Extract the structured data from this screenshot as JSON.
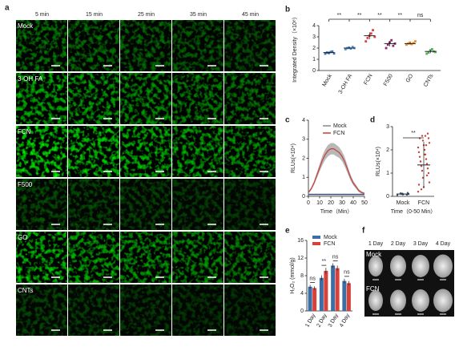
{
  "figure": {
    "panel_a": {
      "label": "a",
      "columns": [
        "5 min",
        "15 min",
        "25 min",
        "35 min",
        "45 min"
      ],
      "rows": [
        "Mock",
        "3-OH FA",
        "FCN",
        "F500",
        "GO",
        "CNTs"
      ]
    },
    "panel_f": {
      "label": "f",
      "columns": [
        "1 Day",
        "2 Day",
        "3 Day",
        "4 Day"
      ],
      "rows": [
        "Mock",
        "FCN"
      ]
    }
  },
  "chart_data": [
    {
      "type": "dot",
      "panel": "b",
      "ylabel": "Integrated Density（×10⁸）",
      "categories": [
        "Mock",
        "3-OH FA",
        "FCN",
        "F500",
        "GO",
        "CNTs"
      ],
      "colors": [
        "#3b6fb6",
        "#4a8fd0",
        "#d9433b",
        "#8a2a6a",
        "#e8912e",
        "#5aaa5a"
      ],
      "values": [
        1.6,
        2.0,
        3.1,
        2.4,
        2.4,
        1.7
      ],
      "errors": [
        0.08,
        0.08,
        0.3,
        0.25,
        0.1,
        0.15
      ],
      "points": [
        [
          1.5,
          1.6,
          1.55,
          1.65,
          1.7,
          1.52
        ],
        [
          1.9,
          2.0,
          2.05,
          1.95,
          2.1,
          2.0
        ],
        [
          2.6,
          2.9,
          3.1,
          3.3,
          3.6,
          3.0
        ],
        [
          2.0,
          2.3,
          2.5,
          2.7,
          2.2,
          2.4
        ],
        [
          2.3,
          2.4,
          2.5,
          2.35,
          2.45,
          2.6
        ],
        [
          1.5,
          1.6,
          1.8,
          1.9,
          1.7,
          1.65
        ]
      ],
      "significance": [
        "**",
        "**",
        "**",
        "**",
        "ns"
      ],
      "ylim": [
        0,
        4
      ],
      "yticks": [
        0,
        1,
        2,
        3,
        4
      ]
    },
    {
      "type": "line",
      "panel": "c",
      "ylabel": "RLUs(×10⁴)",
      "xlabel": "Time（Min）",
      "x": [
        0,
        2.5,
        5,
        7.5,
        10,
        12.5,
        15,
        17.5,
        20,
        22.5,
        25,
        27.5,
        30,
        32.5,
        35,
        37.5,
        40,
        42.5,
        45,
        47.5,
        50
      ],
      "series": [
        {
          "name": "Mock",
          "color": "#3d5a8a",
          "values": [
            0.1,
            0.1,
            0.1,
            0.1,
            0.1,
            0.1,
            0.1,
            0.1,
            0.1,
            0.1,
            0.1,
            0.1,
            0.1,
            0.1,
            0.1,
            0.1,
            0.1,
            0.1,
            0.1,
            0.1,
            0.1
          ],
          "errors": [
            0.05,
            0.05,
            0.05,
            0.05,
            0.05,
            0.05,
            0.05,
            0.05,
            0.05,
            0.05,
            0.05,
            0.05,
            0.05,
            0.05,
            0.05,
            0.05,
            0.05,
            0.05,
            0.05,
            0.05,
            0.05
          ]
        },
        {
          "name": "FCN",
          "color": "#c8403a",
          "values": [
            0.2,
            0.4,
            0.7,
            1.1,
            1.5,
            1.9,
            2.2,
            2.4,
            2.5,
            2.5,
            2.4,
            2.3,
            2.1,
            1.8,
            1.4,
            1.0,
            0.7,
            0.5,
            0.3,
            0.2,
            0.15
          ],
          "errors": [
            0.05,
            0.08,
            0.1,
            0.15,
            0.2,
            0.25,
            0.28,
            0.3,
            0.3,
            0.3,
            0.3,
            0.28,
            0.26,
            0.24,
            0.2,
            0.16,
            0.12,
            0.1,
            0.08,
            0.06,
            0.05
          ]
        }
      ],
      "xlim": [
        0,
        50
      ],
      "xticks": [
        0,
        10,
        20,
        30,
        40,
        50
      ],
      "ylim": [
        0,
        4
      ],
      "yticks": [
        0,
        1,
        2,
        3,
        4
      ]
    },
    {
      "type": "strip",
      "panel": "d",
      "ylabel": "RLUs(×10⁴)",
      "xlabel": "Time（0-50 Min）",
      "categories": [
        "Mock",
        "FCN"
      ],
      "colors": [
        "#3d5a8a",
        "#c8403a"
      ],
      "values": [
        0.1,
        1.35
      ],
      "errors": [
        0.05,
        1.0
      ],
      "points": [
        [
          0.05,
          0.08,
          0.1,
          0.12,
          0.15,
          0.1,
          0.07,
          0.13
        ],
        [
          0.2,
          0.4,
          0.6,
          0.8,
          1.0,
          1.1,
          1.2,
          1.3,
          1.4,
          1.5,
          1.6,
          1.7,
          1.8,
          1.9,
          2.0,
          2.1,
          2.2,
          2.3,
          2.4,
          2.5,
          2.6,
          2.7,
          0.3,
          0.9,
          1.5,
          2.2,
          2.5,
          2.6,
          0.5,
          1.8
        ]
      ],
      "significance": "**",
      "ylim": [
        0,
        3
      ],
      "yticks": [
        0,
        1,
        2,
        3
      ]
    },
    {
      "type": "bar",
      "panel": "e",
      "ylabel": "H₂O₂ (mmol/g)",
      "categories": [
        "1 Day",
        "2 Day",
        "3 Day",
        "4 Day"
      ],
      "series": [
        {
          "name": "Mock",
          "color": "#3a6ea5",
          "values": [
            5.5,
            7.5,
            10.3,
            6.8
          ],
          "errors": [
            0.4,
            0.6,
            0.5,
            0.5
          ]
        },
        {
          "name": "FCN",
          "color": "#d9403a",
          "values": [
            5.2,
            9.1,
            9.7,
            6.3
          ],
          "errors": [
            0.4,
            0.7,
            0.6,
            0.5
          ]
        }
      ],
      "significance": [
        "ns",
        "**",
        "ns",
        "ns"
      ],
      "ylim": [
        0,
        16
      ],
      "yticks": [
        0,
        4,
        8,
        12,
        16
      ]
    }
  ]
}
